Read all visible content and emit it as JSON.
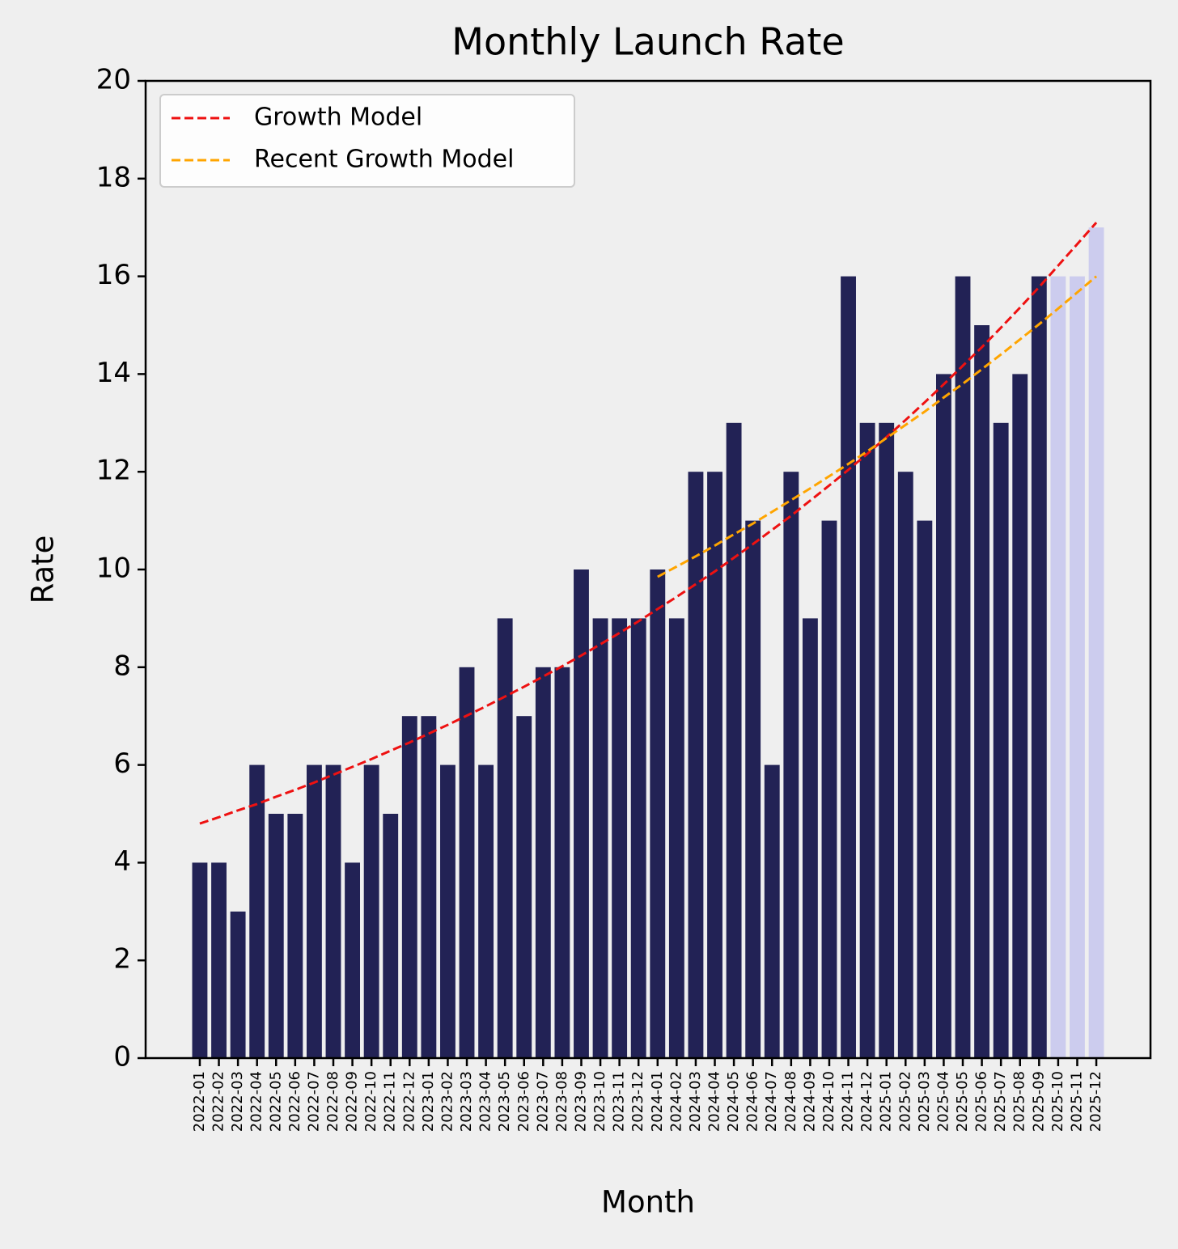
{
  "chart_data": {
    "type": "bar",
    "title": "Monthly Launch Rate",
    "xlabel": "Month",
    "ylabel": "Rate",
    "categories": [
      "2022-01",
      "2022-02",
      "2022-03",
      "2022-04",
      "2022-05",
      "2022-06",
      "2022-07",
      "2022-08",
      "2022-09",
      "2022-10",
      "2022-11",
      "2022-12",
      "2023-01",
      "2023-02",
      "2023-03",
      "2023-04",
      "2023-05",
      "2023-06",
      "2023-07",
      "2023-08",
      "2023-09",
      "2023-10",
      "2023-11",
      "2023-12",
      "2024-01",
      "2024-02",
      "2024-03",
      "2024-04",
      "2024-05",
      "2024-06",
      "2024-07",
      "2024-08",
      "2024-09",
      "2024-10",
      "2024-11",
      "2024-12",
      "2025-01",
      "2025-02",
      "2025-03",
      "2025-04",
      "2025-05",
      "2025-06",
      "2025-07",
      "2025-08",
      "2025-09",
      "2025-10",
      "2025-11",
      "2025-12"
    ],
    "values": [
      4,
      4,
      3,
      6,
      5,
      5,
      6,
      6,
      4,
      6,
      5,
      7,
      7,
      6,
      8,
      6,
      9,
      7,
      8,
      8,
      10,
      9,
      9,
      9,
      10,
      9,
      12,
      12,
      13,
      11,
      6,
      12,
      9,
      11,
      16,
      13,
      13,
      12,
      11,
      14,
      16,
      15,
      13,
      14,
      16,
      16,
      16,
      17
    ],
    "bar_colors": [
      "#222255",
      "#222255",
      "#222255",
      "#222255",
      "#222255",
      "#222255",
      "#222255",
      "#222255",
      "#222255",
      "#222255",
      "#222255",
      "#222255",
      "#222255",
      "#222255",
      "#222255",
      "#222255",
      "#222255",
      "#222255",
      "#222255",
      "#222255",
      "#222255",
      "#222255",
      "#222255",
      "#222255",
      "#222255",
      "#222255",
      "#222255",
      "#222255",
      "#222255",
      "#222255",
      "#222255",
      "#222255",
      "#222255",
      "#222255",
      "#222255",
      "#222255",
      "#222255",
      "#222255",
      "#222255",
      "#222255",
      "#222255",
      "#222255",
      "#222255",
      "#222255",
      "#222255",
      "#ccccee",
      "#ccccee",
      "#ccccee"
    ],
    "lines": [
      {
        "name": "Growth Model",
        "color": "#ee1111",
        "style": "dashed",
        "values": [
          4.8,
          4.93,
          5.07,
          5.2,
          5.35,
          5.49,
          5.64,
          5.8,
          5.96,
          6.12,
          6.29,
          6.46,
          6.64,
          6.82,
          7.01,
          7.2,
          7.4,
          7.6,
          7.81,
          8.02,
          8.24,
          8.47,
          8.7,
          8.94,
          9.19,
          9.44,
          9.7,
          9.96,
          10.24,
          10.52,
          10.81,
          11.1,
          11.41,
          11.72,
          12.04,
          12.37,
          12.71,
          13.06,
          13.42,
          13.79,
          14.17,
          14.55,
          14.95,
          15.36,
          15.78,
          16.22,
          16.66,
          17.1
        ]
      },
      {
        "name": "Recent Growth Model",
        "color": "#ffa500",
        "style": "dashed",
        "values": [
          null,
          null,
          null,
          null,
          null,
          null,
          null,
          null,
          null,
          null,
          null,
          null,
          null,
          null,
          null,
          null,
          null,
          null,
          null,
          null,
          null,
          null,
          null,
          null,
          9.85,
          10.06,
          10.27,
          10.49,
          10.72,
          10.94,
          11.18,
          11.42,
          11.66,
          11.91,
          12.16,
          12.42,
          12.69,
          12.96,
          13.23,
          13.52,
          13.8,
          14.1,
          14.4,
          14.71,
          15.02,
          15.34,
          15.67,
          16.0
        ]
      }
    ],
    "ylim": [
      0,
      20
    ],
    "yticks": [
      0,
      2,
      4,
      6,
      8,
      10,
      12,
      14,
      16,
      18,
      20
    ],
    "grid": false,
    "legend": "upper left"
  }
}
